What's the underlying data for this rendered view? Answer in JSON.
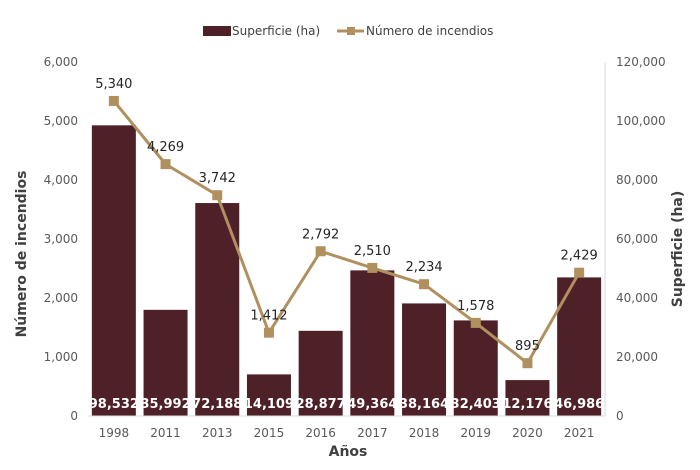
{
  "chart_data": {
    "type": "bar",
    "categories": [
      "1998",
      "2011",
      "2013",
      "2015",
      "2016",
      "2017",
      "2018",
      "2019",
      "2020",
      "2021"
    ],
    "series": [
      {
        "name": "Superficie (ha)",
        "type": "bar",
        "axis": "right",
        "values": [
          98532,
          35992,
          72188,
          14109,
          28877,
          49364,
          38164,
          32403,
          12176,
          46986
        ],
        "labels": [
          "98,532",
          "35,992",
          "72,188",
          "14,109",
          "28,877",
          "49,364",
          "38,164",
          "32,403",
          "12,176",
          "46,986"
        ],
        "color": "#4e2129"
      },
      {
        "name": "Número de incendios",
        "type": "line",
        "axis": "left",
        "values": [
          5340,
          4269,
          3742,
          1412,
          2792,
          2510,
          2234,
          1578,
          895,
          2429
        ],
        "labels": [
          "5,340",
          "4,269",
          "3,742",
          "1,412",
          "2,792",
          "2,510",
          "2,234",
          "1,578",
          "895",
          "2,429"
        ],
        "color": "#b0905f"
      }
    ],
    "xlabel": "Años",
    "ylabel": "Número de incendios",
    "y2label": "Superficie (ha)",
    "ylim": [
      0,
      6000
    ],
    "y2lim": [
      0,
      120000
    ],
    "yticks": [
      "0",
      "1,000",
      "2,000",
      "3,000",
      "4,000",
      "5,000",
      "6,000"
    ],
    "y2ticks": [
      "0",
      "20,000",
      "40,000",
      "60,000",
      "80,000",
      "100,000",
      "120,000"
    ],
    "legend": "top",
    "grid": false
  }
}
